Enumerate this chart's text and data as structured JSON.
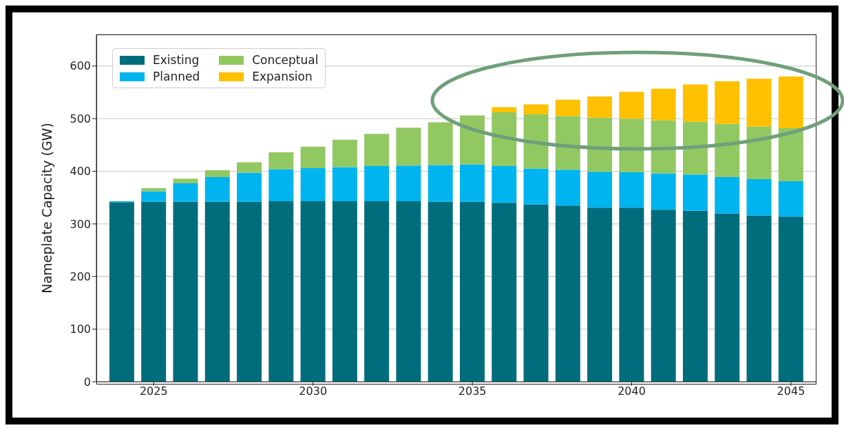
{
  "chart_data": {
    "type": "bar",
    "stacked": true,
    "ylabel": "Nameplate Capacity (GW)",
    "x": [
      2024,
      2025,
      2026,
      2027,
      2028,
      2029,
      2030,
      2031,
      2032,
      2033,
      2034,
      2035,
      2036,
      2037,
      2038,
      2039,
      2040,
      2041,
      2042,
      2043,
      2044,
      2045
    ],
    "xlim": [
      2023.2,
      2045.8
    ],
    "xticks": [
      2025,
      2030,
      2035,
      2040,
      2045
    ],
    "ylim": [
      0,
      660
    ],
    "yticks": [
      0,
      100,
      200,
      300,
      400,
      500,
      600
    ],
    "grid": "y",
    "legend": "top left",
    "series": [
      {
        "name": "Existing",
        "color": "#006d7c",
        "values": [
          341,
          342,
          342,
          342,
          342,
          343,
          343,
          343,
          343,
          343,
          342,
          342,
          340,
          337,
          335,
          331,
          331,
          327,
          325,
          320,
          316,
          314
        ]
      },
      {
        "name": "Planned",
        "color": "#00b4f0",
        "values": [
          2,
          20,
          35,
          47,
          55,
          61,
          63,
          65,
          67,
          68,
          70,
          71,
          70,
          68,
          68,
          68,
          67,
          69,
          69,
          69,
          69,
          67
        ]
      },
      {
        "name": "Conceptual",
        "color": "#92c862",
        "values": [
          0,
          6,
          9,
          13,
          20,
          32,
          41,
          52,
          61,
          72,
          81,
          93,
          102,
          103,
          102,
          103,
          102,
          101,
          100,
          101,
          100,
          101
        ]
      },
      {
        "name": "Expansion",
        "color": "#ffc000",
        "values": [
          0,
          0,
          0,
          0,
          0,
          0,
          0,
          0,
          0,
          0,
          0,
          0,
          10,
          19,
          31,
          40,
          51,
          60,
          71,
          81,
          91,
          98
        ]
      }
    ]
  }
}
